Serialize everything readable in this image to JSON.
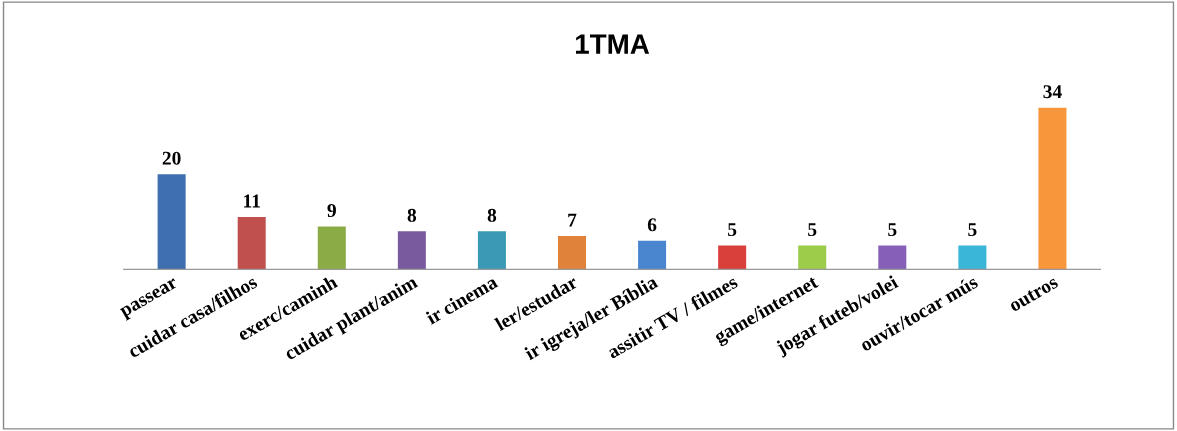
{
  "chart_data": {
    "type": "bar",
    "title": "1TMA",
    "categories": [
      "passear",
      "cuidar casa/filhos",
      "exerc/caminh",
      "cuidar plant/anim",
      "ir cinema",
      "ler/estudar",
      "ir igreja/ler Bíblia",
      "assitir TV / filmes",
      "game/internet",
      "jogar futeb/volei",
      "ouvir/tocar mús",
      "outros"
    ],
    "values": [
      20,
      11,
      9,
      8,
      8,
      7,
      6,
      5,
      5,
      5,
      5,
      34
    ],
    "colors": [
      "#3f6faf",
      "#c0504d",
      "#8aab45",
      "#7a5a9e",
      "#3a9ab5",
      "#e0823a",
      "#4a86cf",
      "#d9403c",
      "#9bcc4a",
      "#8660b8",
      "#39b6d8",
      "#f7963a"
    ],
    "data_labels": true
  }
}
